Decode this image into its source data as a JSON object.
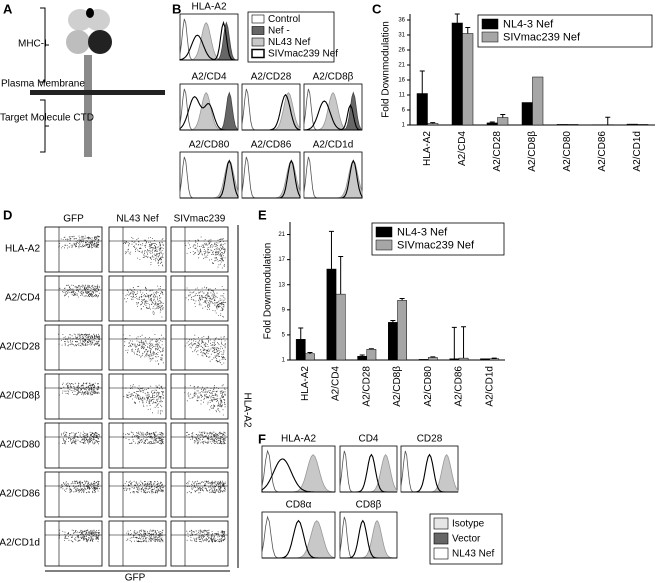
{
  "panelA": {
    "letter": "A",
    "mhc": "MHC-I",
    "membrane": "Plasma Membrane",
    "target": "Target Molecule CTD"
  },
  "panelB": {
    "letter": "B",
    "titles": [
      "HLA-A2",
      "A2/CD4",
      "A2/CD28",
      "A2/CD8β",
      "A2/CD80",
      "A2/CD86",
      "A2/CD1d"
    ],
    "legend": [
      "Control",
      "Nef -",
      "NL43 Nef",
      "SIVmac239 Nef"
    ]
  },
  "panelD": {
    "letter": "D",
    "columns": [
      "GFP",
      "NL43 Nef",
      "SIVmac239"
    ],
    "rows": [
      "HLA-A2",
      "A2/CD4",
      "A2/CD28",
      "A2/CD8β",
      "A2/CD80",
      "A2/CD86",
      "A2/CD1d"
    ],
    "y_label": "HLA-A2",
    "x_label": "GFP"
  },
  "panelF": {
    "letter": "F",
    "titles": [
      "HLA-A2",
      "CD4",
      "CD28",
      "CD8α",
      "CD8β"
    ],
    "legend": [
      "Isotype",
      "Vector",
      "NL43 Nef"
    ]
  },
  "chart_data": [
    {
      "type": "bar",
      "letter": "C",
      "y_label": "Fold Downmodulation",
      "categories": [
        "HLA-A2",
        "A2/CD4",
        "A2/CD28",
        "A2/CD8β",
        "A2/CD80",
        "A2/CD86",
        "A2/CD1d"
      ],
      "series": [
        {
          "name": "NL4-3 Nef",
          "color": "#000000",
          "values": [
            11.5,
            35,
            1.7,
            8.5,
            1.2,
            1.1,
            1.3
          ],
          "errors": [
            7.5,
            3,
            0.3,
            0,
            0,
            0,
            0
          ]
        },
        {
          "name": "SIVmac239 Nef",
          "color": "#a6a6a6",
          "values": [
            1.5,
            31.5,
            3.5,
            17,
            1.2,
            1.1,
            1.2
          ],
          "errors": [
            0.3,
            2,
            1,
            0,
            0,
            2.5,
            0
          ]
        }
      ],
      "ylim": [
        1,
        38
      ],
      "yticks": [
        1,
        6,
        11,
        16,
        21,
        26,
        31,
        36
      ]
    },
    {
      "type": "bar",
      "letter": "E",
      "y_label": "Fold Downmodulation",
      "categories": [
        "HLA-A2",
        "A2/CD4",
        "A2/CD28",
        "A2/CD8β",
        "A2/CD80",
        "A2/CD86",
        "A2/CD1d"
      ],
      "series": [
        {
          "name": "NL4-3 Nef",
          "color": "#000000",
          "values": [
            4.3,
            15.5,
            1.6,
            7,
            1.1,
            1.2,
            1.2
          ],
          "errors": [
            1.8,
            6,
            0.2,
            0.3,
            0,
            5,
            0
          ]
        },
        {
          "name": "SIVmac239 Nef",
          "color": "#a6a6a6",
          "values": [
            2,
            11.5,
            2.7,
            10.5,
            1.4,
            1.3,
            1.2
          ],
          "errors": [
            0.2,
            6,
            0.1,
            0.3,
            0.1,
            5,
            0.1
          ]
        }
      ],
      "ylim": [
        1,
        23
      ],
      "yticks": [
        1,
        5,
        9,
        13,
        17,
        21
      ]
    }
  ]
}
